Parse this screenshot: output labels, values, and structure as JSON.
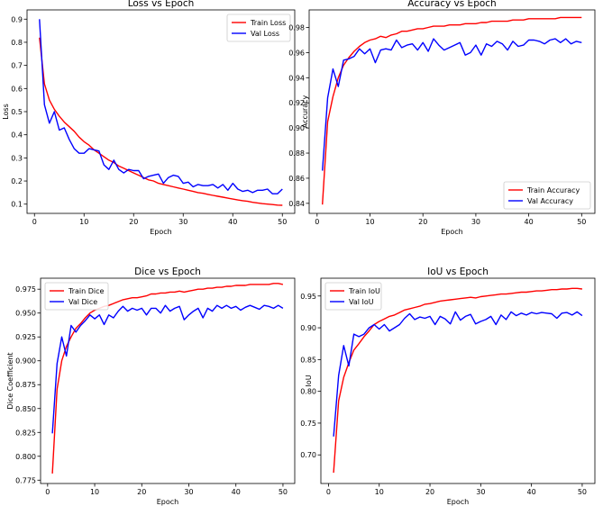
{
  "chart_data": [
    {
      "type": "line",
      "title": "Loss vs Epoch",
      "xlabel": "Epoch",
      "ylabel": "Loss",
      "xlim": [
        -1.5,
        52.5
      ],
      "ylim": [
        0.06,
        0.94
      ],
      "xticks": [
        0,
        10,
        20,
        30,
        40,
        50
      ],
      "yticks": [
        0.1,
        0.2,
        0.3,
        0.4,
        0.5,
        0.6,
        0.7,
        0.8,
        0.9
      ],
      "ytick_labels": [
        "0.1",
        "0.2",
        "0.3",
        "0.4",
        "0.5",
        "0.6",
        "0.7",
        "0.8",
        "0.9"
      ],
      "legend_position": "upper right",
      "x": [
        1,
        2,
        3,
        4,
        5,
        6,
        7,
        8,
        9,
        10,
        11,
        12,
        13,
        14,
        15,
        16,
        17,
        18,
        19,
        20,
        21,
        22,
        23,
        24,
        25,
        26,
        27,
        28,
        29,
        30,
        31,
        32,
        33,
        34,
        35,
        36,
        37,
        38,
        39,
        40,
        41,
        42,
        43,
        44,
        45,
        46,
        47,
        48,
        49,
        50
      ],
      "series": [
        {
          "name": "Train Loss",
          "color": "#ff0000",
          "values": [
            0.82,
            0.62,
            0.55,
            0.51,
            0.48,
            0.455,
            0.435,
            0.415,
            0.39,
            0.37,
            0.355,
            0.335,
            0.32,
            0.305,
            0.29,
            0.28,
            0.265,
            0.255,
            0.245,
            0.235,
            0.225,
            0.215,
            0.205,
            0.2,
            0.19,
            0.185,
            0.18,
            0.175,
            0.17,
            0.165,
            0.16,
            0.155,
            0.15,
            0.147,
            0.142,
            0.138,
            0.134,
            0.13,
            0.126,
            0.122,
            0.118,
            0.115,
            0.112,
            0.108,
            0.105,
            0.102,
            0.1,
            0.098,
            0.096,
            0.095
          ]
        },
        {
          "name": "Val Loss",
          "color": "#0000ff",
          "values": [
            0.9,
            0.53,
            0.45,
            0.5,
            0.42,
            0.43,
            0.38,
            0.34,
            0.32,
            0.32,
            0.34,
            0.335,
            0.33,
            0.27,
            0.25,
            0.29,
            0.25,
            0.235,
            0.25,
            0.245,
            0.245,
            0.21,
            0.22,
            0.225,
            0.23,
            0.19,
            0.215,
            0.225,
            0.22,
            0.19,
            0.195,
            0.175,
            0.185,
            0.18,
            0.18,
            0.185,
            0.17,
            0.185,
            0.16,
            0.19,
            0.165,
            0.155,
            0.16,
            0.15,
            0.16,
            0.16,
            0.165,
            0.145,
            0.145,
            0.165
          ]
        }
      ]
    },
    {
      "type": "line",
      "title": "Accuracy vs Epoch",
      "xlabel": "Epoch",
      "ylabel": "Accuracy",
      "xlim": [
        -1.5,
        52.5
      ],
      "ylim": [
        0.832,
        0.994
      ],
      "xticks": [
        0,
        10,
        20,
        30,
        40,
        50
      ],
      "yticks": [
        0.84,
        0.86,
        0.88,
        0.9,
        0.92,
        0.94,
        0.96,
        0.98
      ],
      "ytick_labels": [
        "0.84",
        "0.86",
        "0.88",
        "0.90",
        "0.92",
        "0.94",
        "0.96",
        "0.98"
      ],
      "legend_position": "lower right",
      "x": [
        1,
        2,
        3,
        4,
        5,
        6,
        7,
        8,
        9,
        10,
        11,
        12,
        13,
        14,
        15,
        16,
        17,
        18,
        19,
        20,
        21,
        22,
        23,
        24,
        25,
        26,
        27,
        28,
        29,
        30,
        31,
        32,
        33,
        34,
        35,
        36,
        37,
        38,
        39,
        40,
        41,
        42,
        43,
        44,
        45,
        46,
        47,
        48,
        49,
        50
      ],
      "series": [
        {
          "name": "Train Accuracy",
          "color": "#ff0000",
          "values": [
            0.839,
            0.905,
            0.925,
            0.94,
            0.95,
            0.956,
            0.961,
            0.965,
            0.968,
            0.97,
            0.971,
            0.973,
            0.972,
            0.974,
            0.975,
            0.977,
            0.977,
            0.978,
            0.979,
            0.979,
            0.98,
            0.981,
            0.981,
            0.981,
            0.982,
            0.982,
            0.982,
            0.983,
            0.983,
            0.983,
            0.984,
            0.984,
            0.985,
            0.985,
            0.985,
            0.985,
            0.986,
            0.986,
            0.986,
            0.987,
            0.987,
            0.987,
            0.987,
            0.987,
            0.987,
            0.988,
            0.988,
            0.988,
            0.988,
            0.988
          ]
        },
        {
          "name": "Val Accuracy",
          "color": "#0000ff",
          "values": [
            0.866,
            0.924,
            0.947,
            0.933,
            0.954,
            0.955,
            0.957,
            0.963,
            0.959,
            0.963,
            0.952,
            0.962,
            0.963,
            0.962,
            0.97,
            0.964,
            0.966,
            0.967,
            0.962,
            0.968,
            0.961,
            0.971,
            0.966,
            0.962,
            0.964,
            0.966,
            0.968,
            0.958,
            0.96,
            0.966,
            0.958,
            0.967,
            0.965,
            0.969,
            0.967,
            0.962,
            0.969,
            0.965,
            0.966,
            0.97,
            0.97,
            0.969,
            0.967,
            0.97,
            0.971,
            0.968,
            0.971,
            0.967,
            0.969,
            0.968
          ]
        }
      ]
    },
    {
      "type": "line",
      "title": "Dice vs Epoch",
      "xlabel": "Epoch",
      "ylabel": "Dice Coefficient",
      "xlim": [
        -1.5,
        52.5
      ],
      "ylim": [
        0.7715,
        0.9865
      ],
      "xticks": [
        0,
        10,
        20,
        30,
        40,
        50
      ],
      "yticks": [
        0.775,
        0.8,
        0.825,
        0.85,
        0.875,
        0.9,
        0.925,
        0.95,
        0.975
      ],
      "ytick_labels": [
        "0.775",
        "0.800",
        "0.825",
        "0.850",
        "0.875",
        "0.900",
        "0.925",
        "0.950",
        "0.975"
      ],
      "legend_position": "upper left",
      "x": [
        1,
        2,
        3,
        4,
        5,
        6,
        7,
        8,
        9,
        10,
        11,
        12,
        13,
        14,
        15,
        16,
        17,
        18,
        19,
        20,
        21,
        22,
        23,
        24,
        25,
        26,
        27,
        28,
        29,
        30,
        31,
        32,
        33,
        34,
        35,
        36,
        37,
        38,
        39,
        40,
        41,
        42,
        43,
        44,
        45,
        46,
        47,
        48,
        49,
        50
      ],
      "series": [
        {
          "name": "Train Dice",
          "color": "#ff0000",
          "values": [
            0.782,
            0.87,
            0.9,
            0.915,
            0.925,
            0.934,
            0.939,
            0.945,
            0.95,
            0.953,
            0.955,
            0.957,
            0.958,
            0.96,
            0.962,
            0.964,
            0.965,
            0.966,
            0.966,
            0.967,
            0.968,
            0.97,
            0.97,
            0.971,
            0.971,
            0.972,
            0.972,
            0.973,
            0.972,
            0.973,
            0.974,
            0.975,
            0.975,
            0.976,
            0.976,
            0.977,
            0.977,
            0.978,
            0.978,
            0.979,
            0.979,
            0.979,
            0.98,
            0.98,
            0.98,
            0.98,
            0.98,
            0.981,
            0.981,
            0.98
          ]
        },
        {
          "name": "Val Dice",
          "color": "#0000ff",
          "values": [
            0.824,
            0.897,
            0.925,
            0.905,
            0.937,
            0.93,
            0.937,
            0.942,
            0.948,
            0.944,
            0.948,
            0.938,
            0.948,
            0.945,
            0.952,
            0.957,
            0.952,
            0.955,
            0.953,
            0.955,
            0.948,
            0.955,
            0.955,
            0.95,
            0.958,
            0.952,
            0.955,
            0.957,
            0.943,
            0.948,
            0.952,
            0.955,
            0.945,
            0.955,
            0.952,
            0.958,
            0.955,
            0.958,
            0.955,
            0.957,
            0.953,
            0.956,
            0.958,
            0.956,
            0.954,
            0.958,
            0.957,
            0.955,
            0.958,
            0.955
          ]
        }
      ]
    },
    {
      "type": "line",
      "title": "IoU vs Epoch",
      "xlabel": "Epoch",
      "ylabel": "IoU",
      "xlim": [
        -1.5,
        52.5
      ],
      "ylim": [
        0.655,
        0.978
      ],
      "xticks": [
        0,
        10,
        20,
        30,
        40,
        50
      ],
      "yticks": [
        0.7,
        0.75,
        0.8,
        0.85,
        0.9,
        0.95
      ],
      "ytick_labels": [
        "0.70",
        "0.75",
        "0.80",
        "0.85",
        "0.90",
        "0.95"
      ],
      "legend_position": "upper left",
      "x": [
        1,
        2,
        3,
        4,
        5,
        6,
        7,
        8,
        9,
        10,
        11,
        12,
        13,
        14,
        15,
        16,
        17,
        18,
        19,
        20,
        21,
        22,
        23,
        24,
        25,
        26,
        27,
        28,
        29,
        30,
        31,
        32,
        33,
        34,
        35,
        36,
        37,
        38,
        39,
        40,
        41,
        42,
        43,
        44,
        45,
        46,
        47,
        48,
        49,
        50
      ],
      "series": [
        {
          "name": "Train IoU",
          "color": "#ff0000",
          "values": [
            0.672,
            0.785,
            0.822,
            0.845,
            0.865,
            0.875,
            0.886,
            0.895,
            0.905,
            0.91,
            0.914,
            0.918,
            0.92,
            0.924,
            0.928,
            0.93,
            0.932,
            0.934,
            0.937,
            0.938,
            0.94,
            0.942,
            0.943,
            0.944,
            0.945,
            0.946,
            0.947,
            0.948,
            0.947,
            0.949,
            0.95,
            0.951,
            0.952,
            0.953,
            0.953,
            0.954,
            0.955,
            0.956,
            0.956,
            0.957,
            0.958,
            0.958,
            0.959,
            0.96,
            0.96,
            0.961,
            0.961,
            0.962,
            0.962,
            0.961
          ]
        },
        {
          "name": "Val IoU",
          "color": "#0000ff",
          "values": [
            0.729,
            0.825,
            0.872,
            0.84,
            0.89,
            0.886,
            0.89,
            0.9,
            0.905,
            0.898,
            0.905,
            0.895,
            0.9,
            0.905,
            0.915,
            0.922,
            0.913,
            0.917,
            0.915,
            0.918,
            0.905,
            0.918,
            0.914,
            0.906,
            0.925,
            0.912,
            0.918,
            0.921,
            0.906,
            0.91,
            0.913,
            0.918,
            0.905,
            0.92,
            0.913,
            0.925,
            0.919,
            0.923,
            0.92,
            0.924,
            0.922,
            0.924,
            0.923,
            0.922,
            0.915,
            0.923,
            0.924,
            0.92,
            0.925,
            0.919
          ]
        }
      ]
    }
  ]
}
